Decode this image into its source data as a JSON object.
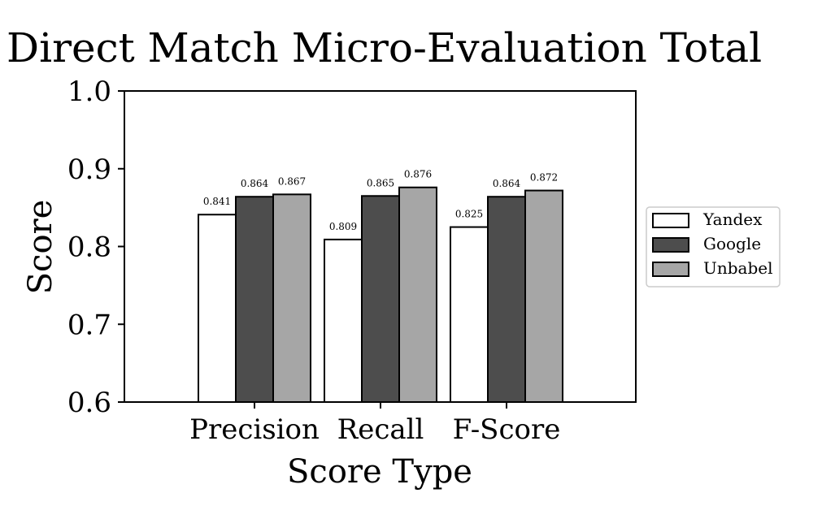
{
  "chart_data": {
    "type": "bar",
    "title": "Direct Match Micro-Evaluation Total",
    "xlabel": "Score Type",
    "ylabel": "Score",
    "categories": [
      "Precision",
      "Recall",
      "F-Score"
    ],
    "ylim": [
      0.6,
      1.0
    ],
    "yticks": [
      "0.6",
      "0.7",
      "0.8",
      "0.9",
      "1.0"
    ],
    "grid": false,
    "legend_position": "outside-right",
    "series": [
      {
        "name": "Yandex",
        "color": "#ffffff",
        "values": [
          0.841,
          0.809,
          0.825
        ],
        "labels": [
          "0.841",
          "0.809",
          "0.825"
        ]
      },
      {
        "name": "Google",
        "color": "#4d4d4d",
        "values": [
          0.864,
          0.865,
          0.864
        ],
        "labels": [
          "0.864",
          "0.865",
          "0.864"
        ]
      },
      {
        "name": "Unbabel",
        "color": "#a6a6a6",
        "values": [
          0.867,
          0.876,
          0.872
        ],
        "labels": [
          "0.867",
          "0.876",
          "0.872"
        ]
      }
    ]
  }
}
